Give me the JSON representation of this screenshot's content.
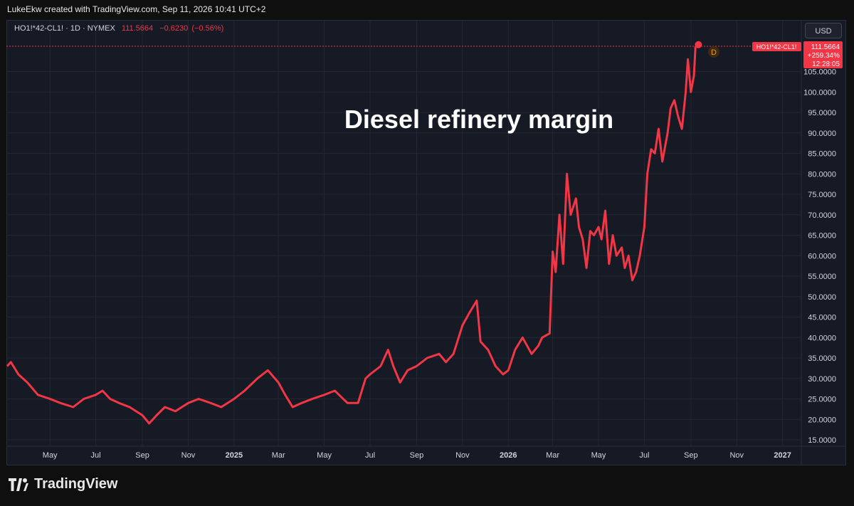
{
  "attribution": "LukeEkw created with TradingView.com, Sep 11, 2026 10:41 UTC+2",
  "legend": {
    "symbol": "HO1!*42-CL1! · 1D · NYMEX",
    "last": "111.5664",
    "change": "−0.6230",
    "change_pct": "(−0.56%)"
  },
  "currency": "USD",
  "brand": "TradingView",
  "price_tag": {
    "symbol": "HO1!*42-CL1!",
    "value": "111.5664",
    "pct": "+259.34%",
    "countdown": "12:28:05"
  },
  "interval_marker": "D",
  "colors": {
    "line": "#f23645",
    "background": "#161a25",
    "grid": "#2a2e39"
  },
  "chart_data": {
    "type": "line",
    "title": "Diesel refinery margin",
    "ylim": [
      15,
      112
    ],
    "yticks": [
      "15.0000",
      "20.0000",
      "25.0000",
      "30.0000",
      "35.0000",
      "40.0000",
      "45.0000",
      "50.0000",
      "55.0000",
      "60.0000",
      "65.0000",
      "70.0000",
      "75.0000",
      "80.0000",
      "85.0000",
      "90.0000",
      "95.0000",
      "100.0000",
      "105.0000"
    ],
    "xtick_labels": [
      "May",
      "Jul",
      "Sep",
      "Nov",
      "2025",
      "Mar",
      "May",
      "Jul",
      "Sep",
      "Nov",
      "2026",
      "Mar",
      "May",
      "Jul",
      "Sep",
      "Nov",
      "2027"
    ],
    "xtick_dates": [
      "2024-05-01",
      "2024-07-01",
      "2024-09-01",
      "2024-11-01",
      "2025-01-01",
      "2025-03-01",
      "2025-05-01",
      "2025-07-01",
      "2025-09-01",
      "2025-11-01",
      "2026-01-01",
      "2026-03-01",
      "2026-05-01",
      "2026-07-01",
      "2026-09-01",
      "2026-11-01",
      "2027-01-01"
    ],
    "xlim": [
      "2024-03-05",
      "2027-01-25"
    ],
    "series": [
      {
        "values": [
          [
            "2024-03-05",
            33
          ],
          [
            "2024-03-10",
            34
          ],
          [
            "2024-03-20",
            31
          ],
          [
            "2024-04-01",
            29
          ],
          [
            "2024-04-15",
            26
          ],
          [
            "2024-05-01",
            25
          ],
          [
            "2024-05-15",
            24
          ],
          [
            "2024-06-01",
            23
          ],
          [
            "2024-06-15",
            25
          ],
          [
            "2024-07-01",
            26
          ],
          [
            "2024-07-10",
            27
          ],
          [
            "2024-07-20",
            25
          ],
          [
            "2024-08-01",
            24
          ],
          [
            "2024-08-15",
            23
          ],
          [
            "2024-09-01",
            21
          ],
          [
            "2024-09-10",
            19
          ],
          [
            "2024-09-20",
            21
          ],
          [
            "2024-10-01",
            23
          ],
          [
            "2024-10-15",
            22
          ],
          [
            "2024-11-01",
            24
          ],
          [
            "2024-11-15",
            25
          ],
          [
            "2024-12-01",
            24
          ],
          [
            "2024-12-15",
            23
          ],
          [
            "2025-01-01",
            25
          ],
          [
            "2025-01-15",
            27
          ],
          [
            "2025-02-01",
            30
          ],
          [
            "2025-02-15",
            32
          ],
          [
            "2025-03-01",
            29
          ],
          [
            "2025-03-10",
            26
          ],
          [
            "2025-03-20",
            23
          ],
          [
            "2025-04-01",
            24
          ],
          [
            "2025-04-15",
            25
          ],
          [
            "2025-05-01",
            26
          ],
          [
            "2025-05-15",
            27
          ],
          [
            "2025-06-01",
            24
          ],
          [
            "2025-06-15",
            24
          ],
          [
            "2025-06-25",
            30
          ],
          [
            "2025-07-01",
            31
          ],
          [
            "2025-07-15",
            33
          ],
          [
            "2025-07-25",
            37
          ],
          [
            "2025-08-01",
            33
          ],
          [
            "2025-08-10",
            29
          ],
          [
            "2025-08-20",
            32
          ],
          [
            "2025-09-01",
            33
          ],
          [
            "2025-09-15",
            35
          ],
          [
            "2025-10-01",
            36
          ],
          [
            "2025-10-10",
            34
          ],
          [
            "2025-10-20",
            36
          ],
          [
            "2025-11-01",
            43
          ],
          [
            "2025-11-10",
            46
          ],
          [
            "2025-11-20",
            49
          ],
          [
            "2025-11-25",
            39
          ],
          [
            "2025-12-05",
            37
          ],
          [
            "2025-12-15",
            33
          ],
          [
            "2025-12-25",
            31
          ],
          [
            "2026-01-01",
            32
          ],
          [
            "2026-01-10",
            37
          ],
          [
            "2026-01-20",
            40
          ],
          [
            "2026-02-01",
            36
          ],
          [
            "2026-02-10",
            38
          ],
          [
            "2026-02-15",
            40
          ],
          [
            "2026-02-25",
            41
          ],
          [
            "2026-03-01",
            61
          ],
          [
            "2026-03-05",
            56
          ],
          [
            "2026-03-10",
            70
          ],
          [
            "2026-03-15",
            58
          ],
          [
            "2026-03-20",
            80
          ],
          [
            "2026-03-25",
            70
          ],
          [
            "2026-04-01",
            74
          ],
          [
            "2026-04-05",
            67
          ],
          [
            "2026-04-10",
            64
          ],
          [
            "2026-04-15",
            57
          ],
          [
            "2026-04-20",
            66
          ],
          [
            "2026-04-25",
            65
          ],
          [
            "2026-05-01",
            67
          ],
          [
            "2026-05-05",
            64
          ],
          [
            "2026-05-10",
            71
          ],
          [
            "2026-05-15",
            58
          ],
          [
            "2026-05-20",
            65
          ],
          [
            "2026-05-25",
            60
          ],
          [
            "2026-06-01",
            62
          ],
          [
            "2026-06-05",
            57
          ],
          [
            "2026-06-10",
            60
          ],
          [
            "2026-06-15",
            54
          ],
          [
            "2026-06-20",
            56
          ],
          [
            "2026-06-25",
            60
          ],
          [
            "2026-07-01",
            67
          ],
          [
            "2026-07-05",
            80
          ],
          [
            "2026-07-10",
            86
          ],
          [
            "2026-07-15",
            85
          ],
          [
            "2026-07-20",
            91
          ],
          [
            "2026-07-25",
            83
          ],
          [
            "2026-08-01",
            90
          ],
          [
            "2026-08-05",
            96
          ],
          [
            "2026-08-10",
            98
          ],
          [
            "2026-08-15",
            94
          ],
          [
            "2026-08-20",
            91
          ],
          [
            "2026-08-25",
            100
          ],
          [
            "2026-08-28",
            108
          ],
          [
            "2026-09-01",
            100
          ],
          [
            "2026-09-05",
            104
          ],
          [
            "2026-09-07",
            111
          ],
          [
            "2026-09-11",
            111.5664
          ]
        ]
      }
    ]
  }
}
